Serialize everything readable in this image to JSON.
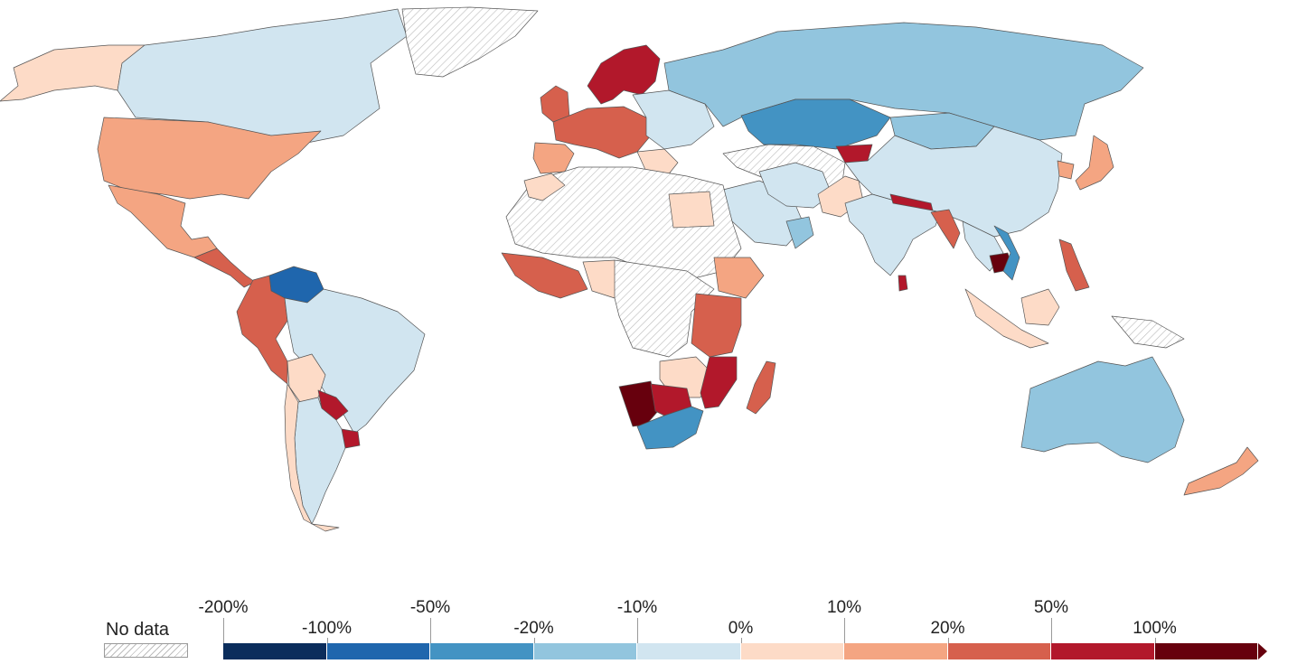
{
  "legend": {
    "no_data_label": "No data",
    "ticks": [
      "-200%",
      "-100%",
      "-50%",
      "-20%",
      "-10%",
      "0%",
      "10%",
      "20%",
      "50%",
      "100%"
    ],
    "colors": [
      "#0b2d5c",
      "#1f66ad",
      "#4393c3",
      "#92c5de",
      "#d1e5f0",
      "#fddbc7",
      "#f4a582",
      "#d6604d",
      "#b2182b",
      "#67000d"
    ],
    "no_data_pattern": "hatched-grey"
  },
  "palette": {
    "nodata": "#f2f2f2",
    "ocean": "#ffffff"
  }
}
